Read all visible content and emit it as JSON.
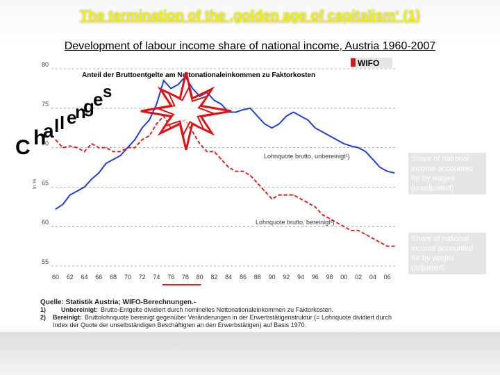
{
  "slide": {
    "title": "The termination of the ‚golden age of capitalism‘ (1)",
    "subtitle": "Development of labour income share of national income, Austria 1960-2007",
    "word_art": [
      "C",
      "h",
      "a",
      "l",
      "l",
      "e",
      "n",
      "g",
      "e",
      "s"
    ]
  },
  "notes": {
    "unadjusted": "Share of national income accounted for by wages (unadjusted)",
    "adjusted": "Share of national income accounted for by wages (adjusted)"
  },
  "source": {
    "title": "Quelle: Statistik Austria; WIFO-Berechnungen.-",
    "rows": [
      {
        "num": "1)",
        "key": "Unbereinigt:",
        "text": "Brutto-Entgelte dividiert durch nominelles Nettonationaleinkommen zu Faktorkosten."
      },
      {
        "num": "2)",
        "key": "Bereinigt:",
        "text": "Bruttolohnquote bereinigt gegenüber Veränderungen in der Erwerbstätigenstruktur (= Lohnquote dividiert durch Index der Quote der unselbständigen Beschäftigten an den Erwerbstätigen) auf Basis 1970."
      }
    ]
  },
  "chart_data": {
    "type": "line",
    "title": "Anteil der Bruttoentgelte am Nettonationaleinkommen zu Faktorkosten",
    "logo": "WIFO",
    "ylabel": "In %",
    "xlabel": "",
    "xlim": [
      1960,
      2007
    ],
    "ylim": [
      55,
      80
    ],
    "yticks": [
      55,
      60,
      65,
      70,
      75,
      80
    ],
    "xtick_labels": [
      "60",
      "62",
      "64",
      "66",
      "68",
      "70",
      "72",
      "74",
      "76",
      "78",
      "80",
      "82",
      "84",
      "86",
      "88",
      "90",
      "92",
      "94",
      "96",
      "98",
      "00",
      "02",
      "04",
      "06"
    ],
    "grid": "horizontal dashed",
    "highlight_years": [
      1975,
      1980
    ],
    "series": [
      {
        "name": "Lohnquote brutto, unbereinigt¹)",
        "color": "#1f3de0",
        "x": [
          1960,
          1961,
          1962,
          1963,
          1964,
          1965,
          1966,
          1967,
          1968,
          1969,
          1970,
          1971,
          1972,
          1973,
          1974,
          1975,
          1976,
          1977,
          1978,
          1979,
          1980,
          1981,
          1982,
          1983,
          1984,
          1985,
          1986,
          1987,
          1988,
          1989,
          1990,
          1991,
          1992,
          1993,
          1994,
          1995,
          1996,
          1997,
          1998,
          1999,
          2000,
          2001,
          2002,
          2003,
          2004,
          2005,
          2006,
          2007
        ],
        "y": [
          62.2,
          62.8,
          64.0,
          64.5,
          65.0,
          66.0,
          66.8,
          68.0,
          68.5,
          69.0,
          70.0,
          71.0,
          72.5,
          73.5,
          75.5,
          78.5,
          77.5,
          78.0,
          79.0,
          77.5,
          76.5,
          77.0,
          76.0,
          75.5,
          74.5,
          74.5,
          74.8,
          75.0,
          74.0,
          73.0,
          72.5,
          73.0,
          74.0,
          74.5,
          74.0,
          73.5,
          72.5,
          72.0,
          71.5,
          71.0,
          70.5,
          70.2,
          70.0,
          69.5,
          68.5,
          67.5,
          67.0,
          66.8
        ]
      },
      {
        "name": "Lohnquote brutto, bereinigt²)",
        "color": "#e02020",
        "x": [
          1960,
          1961,
          1962,
          1963,
          1964,
          1965,
          1966,
          1967,
          1968,
          1969,
          1970,
          1971,
          1972,
          1973,
          1974,
          1975,
          1976,
          1977,
          1978,
          1979,
          1980,
          1981,
          1982,
          1983,
          1984,
          1985,
          1986,
          1987,
          1988,
          1989,
          1990,
          1991,
          1992,
          1993,
          1994,
          1995,
          1996,
          1997,
          1998,
          1999,
          2000,
          2001,
          2002,
          2003,
          2004,
          2005,
          2006,
          2007
        ],
        "y": [
          71.0,
          70.0,
          70.2,
          70.0,
          69.5,
          70.5,
          70.0,
          70.0,
          69.5,
          69.5,
          70.0,
          70.0,
          71.0,
          71.5,
          73.0,
          74.0,
          72.5,
          73.0,
          73.5,
          72.0,
          70.5,
          69.5,
          69.5,
          68.5,
          67.5,
          67.0,
          67.0,
          66.5,
          65.5,
          64.5,
          63.5,
          64.0,
          64.0,
          64.0,
          63.5,
          63.0,
          62.5,
          61.5,
          61.0,
          60.5,
          60.0,
          59.5,
          59.5,
          59.0,
          58.5,
          58.0,
          57.5,
          57.5
        ]
      }
    ]
  }
}
